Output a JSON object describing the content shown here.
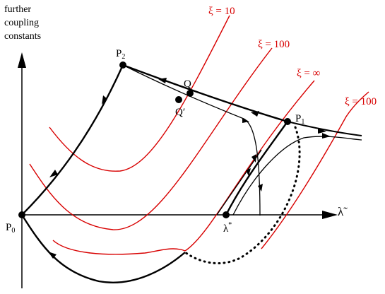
{
  "axis": {
    "y_title_lines": [
      "further",
      "coupling",
      "constants"
    ],
    "x_label": "λ̃"
  },
  "points": {
    "p0": {
      "name": "P",
      "sub": "0"
    },
    "p1": {
      "name": "P",
      "sub": "1"
    },
    "p2": {
      "name": "P",
      "sub": "2"
    },
    "q": {
      "name": "Q"
    },
    "q_prime": {
      "name": "Q′"
    },
    "lambda_star": {
      "name": "λ",
      "sup": "*"
    }
  },
  "curve_labels": {
    "xi_10": "ξ = 10",
    "xi_100_upper": "ξ = 100",
    "xi_inf": "ξ =  ∞",
    "xi_100_right": "ξ = 100"
  },
  "colors": {
    "curve_red": "#d80000",
    "ink": "#000000"
  }
}
